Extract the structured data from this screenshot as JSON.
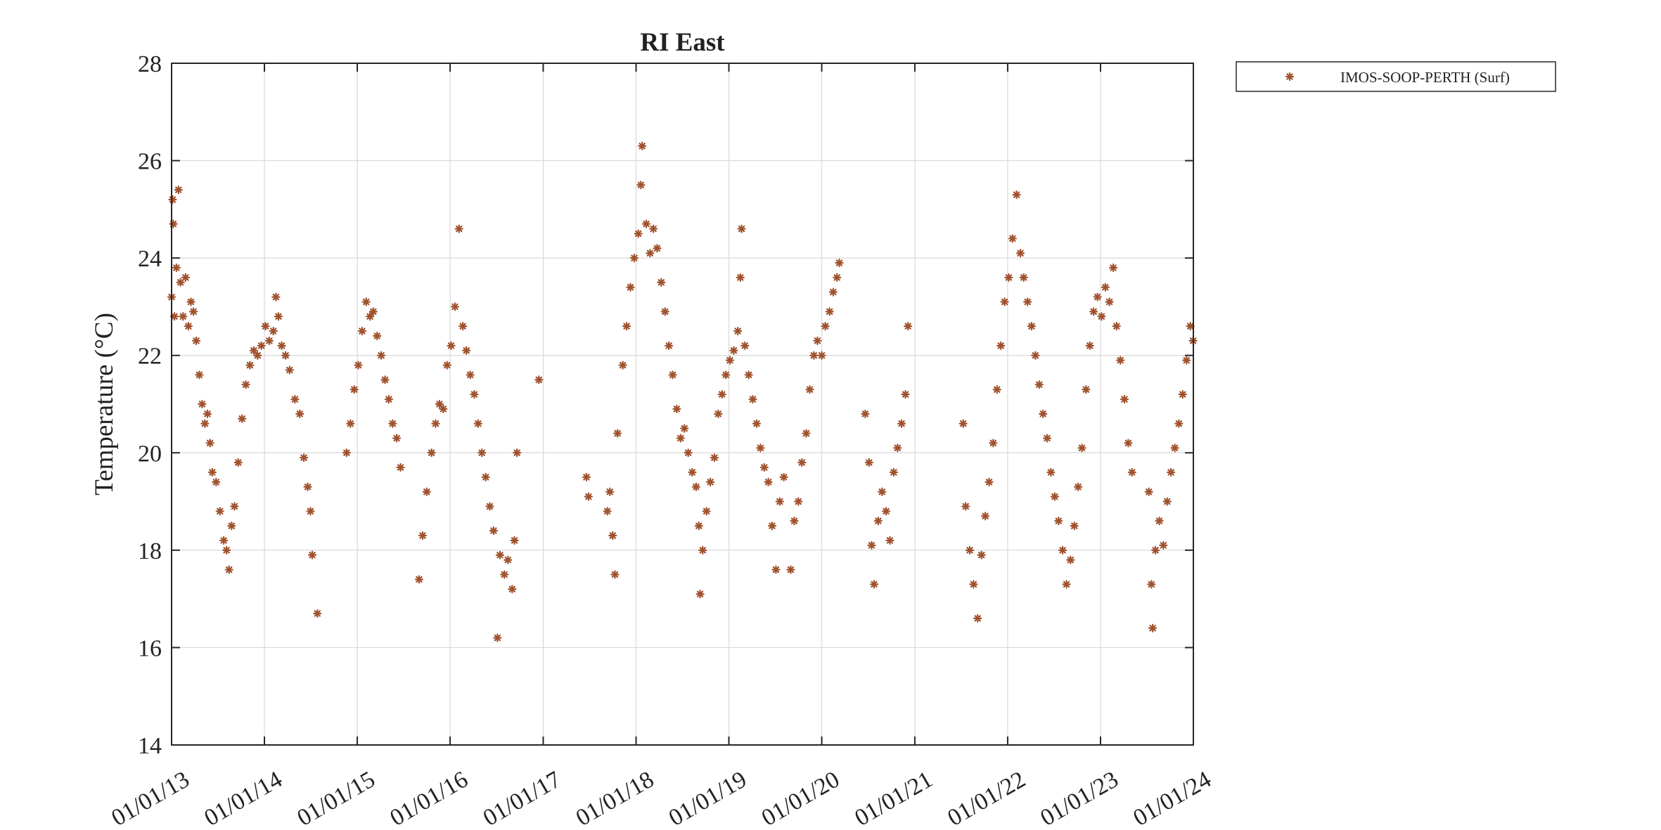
{
  "chart_data": {
    "type": "scatter",
    "title": "RI East",
    "xlabel": "",
    "ylabel": "Temperature (°C)",
    "x_axis_type": "date",
    "xlim": [
      "2013-01-01",
      "2024-01-01"
    ],
    "ylim": [
      14,
      28
    ],
    "x_tick_labels": [
      "01/01/13",
      "01/01/14",
      "01/01/15",
      "01/01/16",
      "01/01/17",
      "01/01/18",
      "01/01/19",
      "01/01/20",
      "01/01/21",
      "01/01/22",
      "01/01/23",
      "01/01/24"
    ],
    "y_ticks": [
      14,
      16,
      18,
      20,
      22,
      24,
      26,
      28
    ],
    "grid": true,
    "legend_position": "outside-top-right",
    "series": [
      {
        "name": "IMOS-SOOP-PERTH (Surf)",
        "marker": "asterisk",
        "color": "#A0522D",
        "points": [
          [
            "2013-01-01",
            23.2
          ],
          [
            "2013-01-05",
            25.2
          ],
          [
            "2013-01-08",
            24.7
          ],
          [
            "2013-01-12",
            22.8
          ],
          [
            "2013-01-20",
            23.8
          ],
          [
            "2013-01-28",
            25.4
          ],
          [
            "2013-02-05",
            23.5
          ],
          [
            "2013-02-15",
            22.8
          ],
          [
            "2013-02-25",
            23.6
          ],
          [
            "2013-03-08",
            22.6
          ],
          [
            "2013-03-18",
            23.1
          ],
          [
            "2013-03-28",
            22.9
          ],
          [
            "2013-04-08",
            22.3
          ],
          [
            "2013-04-20",
            21.6
          ],
          [
            "2013-05-01",
            21.0
          ],
          [
            "2013-05-12",
            20.6
          ],
          [
            "2013-05-22",
            20.8
          ],
          [
            "2013-06-01",
            20.2
          ],
          [
            "2013-06-10",
            19.6
          ],
          [
            "2013-06-25",
            19.4
          ],
          [
            "2013-07-10",
            18.8
          ],
          [
            "2013-07-25",
            18.2
          ],
          [
            "2013-08-05",
            18.0
          ],
          [
            "2013-08-15",
            17.6
          ],
          [
            "2013-08-25",
            18.5
          ],
          [
            "2013-09-05",
            18.9
          ],
          [
            "2013-09-20",
            19.8
          ],
          [
            "2013-10-05",
            20.7
          ],
          [
            "2013-10-20",
            21.4
          ],
          [
            "2013-11-05",
            21.8
          ],
          [
            "2013-11-20",
            22.1
          ],
          [
            "2013-12-05",
            22.0
          ],
          [
            "2013-12-20",
            22.2
          ],
          [
            "2014-01-05",
            22.6
          ],
          [
            "2014-01-20",
            22.3
          ],
          [
            "2014-02-05",
            22.5
          ],
          [
            "2014-02-15",
            23.2
          ],
          [
            "2014-02-25",
            22.8
          ],
          [
            "2014-03-10",
            22.2
          ],
          [
            "2014-03-25",
            22.0
          ],
          [
            "2014-04-10",
            21.7
          ],
          [
            "2014-05-01",
            21.1
          ],
          [
            "2014-05-20",
            20.8
          ],
          [
            "2014-06-05",
            19.9
          ],
          [
            "2014-06-20",
            19.3
          ],
          [
            "2014-07-01",
            18.8
          ],
          [
            "2014-07-08",
            17.9
          ],
          [
            "2014-07-28",
            16.7
          ],
          [
            "2014-11-20",
            20.0
          ],
          [
            "2014-12-05",
            20.6
          ],
          [
            "2014-12-20",
            21.3
          ],
          [
            "2015-01-05",
            21.8
          ],
          [
            "2015-01-20",
            22.5
          ],
          [
            "2015-02-05",
            23.1
          ],
          [
            "2015-02-20",
            22.8
          ],
          [
            "2015-03-05",
            22.9
          ],
          [
            "2015-03-20",
            22.4
          ],
          [
            "2015-04-05",
            22.0
          ],
          [
            "2015-04-20",
            21.5
          ],
          [
            "2015-05-05",
            21.1
          ],
          [
            "2015-05-20",
            20.6
          ],
          [
            "2015-06-05",
            20.3
          ],
          [
            "2015-06-20",
            19.7
          ],
          [
            "2015-09-01",
            17.4
          ],
          [
            "2015-09-15",
            18.3
          ],
          [
            "2015-10-01",
            19.2
          ],
          [
            "2015-10-20",
            20.0
          ],
          [
            "2015-11-05",
            20.6
          ],
          [
            "2015-11-20",
            21.0
          ],
          [
            "2015-12-05",
            20.9
          ],
          [
            "2015-12-20",
            21.8
          ],
          [
            "2016-01-05",
            22.2
          ],
          [
            "2016-01-20",
            23.0
          ],
          [
            "2016-02-05",
            24.6
          ],
          [
            "2016-02-20",
            22.6
          ],
          [
            "2016-03-05",
            22.1
          ],
          [
            "2016-03-20",
            21.6
          ],
          [
            "2016-04-05",
            21.2
          ],
          [
            "2016-04-20",
            20.6
          ],
          [
            "2016-05-05",
            20.0
          ],
          [
            "2016-05-20",
            19.5
          ],
          [
            "2016-06-05",
            18.9
          ],
          [
            "2016-06-20",
            18.4
          ],
          [
            "2016-07-05",
            16.2
          ],
          [
            "2016-07-15",
            17.9
          ],
          [
            "2016-08-01",
            17.5
          ],
          [
            "2016-08-15",
            17.8
          ],
          [
            "2016-09-01",
            17.2
          ],
          [
            "2016-09-10",
            18.2
          ],
          [
            "2016-09-20",
            20.0
          ],
          [
            "2016-12-15",
            21.5
          ],
          [
            "2017-06-20",
            19.5
          ],
          [
            "2017-06-28",
            19.1
          ],
          [
            "2017-09-10",
            18.8
          ],
          [
            "2017-09-20",
            19.2
          ],
          [
            "2017-10-01",
            18.3
          ],
          [
            "2017-10-10",
            17.5
          ],
          [
            "2017-10-20",
            20.4
          ],
          [
            "2017-11-10",
            21.8
          ],
          [
            "2017-11-25",
            22.6
          ],
          [
            "2017-12-10",
            23.4
          ],
          [
            "2017-12-25",
            24.0
          ],
          [
            "2018-01-10",
            24.5
          ],
          [
            "2018-01-20",
            25.5
          ],
          [
            "2018-01-25",
            26.3
          ],
          [
            "2018-02-10",
            24.7
          ],
          [
            "2018-02-25",
            24.1
          ],
          [
            "2018-03-10",
            24.6
          ],
          [
            "2018-03-25",
            24.2
          ],
          [
            "2018-04-10",
            23.5
          ],
          [
            "2018-04-25",
            22.9
          ],
          [
            "2018-05-10",
            22.2
          ],
          [
            "2018-05-25",
            21.6
          ],
          [
            "2018-06-10",
            20.9
          ],
          [
            "2018-06-25",
            20.3
          ],
          [
            "2018-07-10",
            20.5
          ],
          [
            "2018-07-25",
            20.0
          ],
          [
            "2018-08-10",
            19.6
          ],
          [
            "2018-08-25",
            19.3
          ],
          [
            "2018-09-05",
            18.5
          ],
          [
            "2018-09-10",
            17.1
          ],
          [
            "2018-09-20",
            18.0
          ],
          [
            "2018-10-05",
            18.8
          ],
          [
            "2018-10-20",
            19.4
          ],
          [
            "2018-11-05",
            19.9
          ],
          [
            "2018-11-20",
            20.8
          ],
          [
            "2018-12-05",
            21.2
          ],
          [
            "2018-12-20",
            21.6
          ],
          [
            "2019-01-05",
            21.9
          ],
          [
            "2019-01-20",
            22.1
          ],
          [
            "2019-02-05",
            22.5
          ],
          [
            "2019-02-15",
            23.6
          ],
          [
            "2019-02-20",
            24.6
          ],
          [
            "2019-03-05",
            22.2
          ],
          [
            "2019-03-20",
            21.6
          ],
          [
            "2019-04-05",
            21.1
          ],
          [
            "2019-04-20",
            20.6
          ],
          [
            "2019-05-05",
            20.1
          ],
          [
            "2019-05-20",
            19.7
          ],
          [
            "2019-06-05",
            19.4
          ],
          [
            "2019-06-20",
            18.5
          ],
          [
            "2019-07-05",
            17.6
          ],
          [
            "2019-07-20",
            19.0
          ],
          [
            "2019-08-05",
            19.5
          ],
          [
            "2019-09-01",
            17.6
          ],
          [
            "2019-09-15",
            18.6
          ],
          [
            "2019-10-01",
            19.0
          ],
          [
            "2019-10-15",
            19.8
          ],
          [
            "2019-11-01",
            20.4
          ],
          [
            "2019-11-15",
            21.3
          ],
          [
            "2019-12-01",
            22.0
          ],
          [
            "2019-12-15",
            22.3
          ],
          [
            "2020-01-01",
            22.0
          ],
          [
            "2020-01-15",
            22.6
          ],
          [
            "2020-02-01",
            22.9
          ],
          [
            "2020-02-15",
            23.3
          ],
          [
            "2020-03-01",
            23.6
          ],
          [
            "2020-03-10",
            23.9
          ],
          [
            "2020-06-20",
            20.8
          ],
          [
            "2020-07-05",
            19.8
          ],
          [
            "2020-07-15",
            18.1
          ],
          [
            "2020-07-25",
            17.3
          ],
          [
            "2020-08-10",
            18.6
          ],
          [
            "2020-08-25",
            19.2
          ],
          [
            "2020-09-10",
            18.8
          ],
          [
            "2020-09-25",
            18.2
          ],
          [
            "2020-10-10",
            19.6
          ],
          [
            "2020-10-25",
            20.1
          ],
          [
            "2020-11-10",
            20.6
          ],
          [
            "2020-11-25",
            21.2
          ],
          [
            "2020-12-05",
            22.6
          ],
          [
            "2021-07-10",
            20.6
          ],
          [
            "2021-07-20",
            18.9
          ],
          [
            "2021-08-05",
            18.0
          ],
          [
            "2021-08-20",
            17.3
          ],
          [
            "2021-09-05",
            16.6
          ],
          [
            "2021-09-20",
            17.9
          ],
          [
            "2021-10-05",
            18.7
          ],
          [
            "2021-10-20",
            19.4
          ],
          [
            "2021-11-05",
            20.2
          ],
          [
            "2021-11-20",
            21.3
          ],
          [
            "2021-12-05",
            22.2
          ],
          [
            "2021-12-20",
            23.1
          ],
          [
            "2022-01-05",
            23.6
          ],
          [
            "2022-01-20",
            24.4
          ],
          [
            "2022-02-05",
            25.3
          ],
          [
            "2022-02-20",
            24.1
          ],
          [
            "2022-03-05",
            23.6
          ],
          [
            "2022-03-20",
            23.1
          ],
          [
            "2022-04-05",
            22.6
          ],
          [
            "2022-04-20",
            22.0
          ],
          [
            "2022-05-05",
            21.4
          ],
          [
            "2022-05-20",
            20.8
          ],
          [
            "2022-06-05",
            20.3
          ],
          [
            "2022-06-20",
            19.6
          ],
          [
            "2022-07-05",
            19.1
          ],
          [
            "2022-07-20",
            18.6
          ],
          [
            "2022-08-05",
            18.0
          ],
          [
            "2022-08-20",
            17.3
          ],
          [
            "2022-09-05",
            17.8
          ],
          [
            "2022-09-20",
            18.5
          ],
          [
            "2022-10-05",
            19.3
          ],
          [
            "2022-10-20",
            20.1
          ],
          [
            "2022-11-05",
            21.3
          ],
          [
            "2022-11-20",
            22.2
          ],
          [
            "2022-12-05",
            22.9
          ],
          [
            "2022-12-20",
            23.2
          ],
          [
            "2023-01-05",
            22.8
          ],
          [
            "2023-01-20",
            23.4
          ],
          [
            "2023-02-05",
            23.1
          ],
          [
            "2023-02-20",
            23.8
          ],
          [
            "2023-03-05",
            22.6
          ],
          [
            "2023-03-20",
            21.9
          ],
          [
            "2023-04-05",
            21.1
          ],
          [
            "2023-04-20",
            20.2
          ],
          [
            "2023-05-05",
            19.6
          ],
          [
            "2023-07-10",
            19.2
          ],
          [
            "2023-07-20",
            17.3
          ],
          [
            "2023-07-25",
            16.4
          ],
          [
            "2023-08-05",
            18.0
          ],
          [
            "2023-08-20",
            18.6
          ],
          [
            "2023-09-05",
            18.1
          ],
          [
            "2023-09-20",
            19.0
          ],
          [
            "2023-10-05",
            19.6
          ],
          [
            "2023-10-20",
            20.1
          ],
          [
            "2023-11-05",
            20.6
          ],
          [
            "2023-11-20",
            21.2
          ],
          [
            "2023-12-05",
            21.9
          ],
          [
            "2023-12-20",
            22.6
          ],
          [
            "2023-12-31",
            22.3
          ]
        ]
      }
    ]
  }
}
